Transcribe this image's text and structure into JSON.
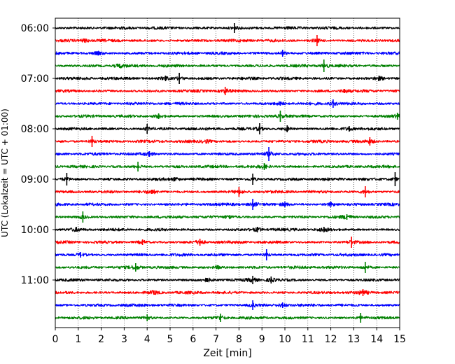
{
  "chart_data": {
    "type": "line",
    "xlabel": "Zeit  [min]",
    "ylabel": "UTC (Lokalzeit = UTC + 01:00)",
    "xlim": [
      0,
      15
    ],
    "x_ticks": [
      0,
      1,
      2,
      3,
      4,
      5,
      6,
      7,
      8,
      9,
      10,
      11,
      12,
      13,
      14,
      15
    ],
    "x_tick_labels": [
      "0",
      "1",
      "2",
      "3",
      "4",
      "5",
      "6",
      "7",
      "8",
      "9",
      "10",
      "11",
      "12",
      "13",
      "14",
      "15"
    ],
    "y_ticks": [
      {
        "time": "06:00",
        "label": "06:00"
      },
      {
        "time": "07:00",
        "label": "07:00"
      },
      {
        "time": "08:00",
        "label": "08:00"
      },
      {
        "time": "09:00",
        "label": "09:00"
      },
      {
        "time": "10:00",
        "label": "10:00"
      },
      {
        "time": "11:00",
        "label": "11:00"
      }
    ],
    "vertical_grid": "dotted, every 1 min",
    "trace_interval_min": 15,
    "colors_cycle": [
      "#000000",
      "#ff0000",
      "#0000ff",
      "#008000"
    ],
    "traces": [
      {
        "start": "06:00",
        "color": "#000000",
        "spikes": [
          [
            7.8,
            7
          ]
        ]
      },
      {
        "start": "06:15",
        "color": "#ff0000",
        "spikes": [
          [
            11.4,
            8
          ],
          [
            1.3,
            3
          ]
        ]
      },
      {
        "start": "06:30",
        "color": "#0000ff",
        "spikes": [
          [
            9.9,
            5
          ],
          [
            1.9,
            3
          ]
        ]
      },
      {
        "start": "06:45",
        "color": "#008000",
        "spikes": [
          [
            11.7,
            9
          ],
          [
            2.8,
            3
          ]
        ]
      },
      {
        "start": "07:00",
        "color": "#000000",
        "spikes": [
          [
            5.4,
            8
          ],
          [
            4.8,
            4
          ],
          [
            14.1,
            4
          ]
        ]
      },
      {
        "start": "07:15",
        "color": "#ff0000",
        "spikes": [
          [
            7.4,
            6
          ],
          [
            12.6,
            3
          ]
        ]
      },
      {
        "start": "07:30",
        "color": "#0000ff",
        "spikes": [
          [
            12.1,
            6
          ],
          [
            9.8,
            3
          ]
        ]
      },
      {
        "start": "07:45",
        "color": "#008000",
        "spikes": [
          [
            9.8,
            8
          ],
          [
            14.9,
            5
          ],
          [
            4.5,
            4
          ]
        ]
      },
      {
        "start": "08:00",
        "color": "#000000",
        "spikes": [
          [
            4.0,
            7
          ],
          [
            8.9,
            8
          ],
          [
            10.1,
            5
          ],
          [
            12.8,
            4
          ]
        ]
      },
      {
        "start": "08:15",
        "color": "#ff0000",
        "spikes": [
          [
            1.6,
            8
          ],
          [
            13.7,
            6
          ],
          [
            6.6,
            3
          ]
        ]
      },
      {
        "start": "08:30",
        "color": "#0000ff",
        "spikes": [
          [
            9.3,
            10
          ],
          [
            4.1,
            4
          ]
        ]
      },
      {
        "start": "08:45",
        "color": "#008000",
        "spikes": [
          [
            3.6,
            7
          ],
          [
            9.1,
            5
          ]
        ]
      },
      {
        "start": "09:00",
        "color": "#000000",
        "spikes": [
          [
            0.5,
            9
          ],
          [
            8.6,
            8
          ],
          [
            14.8,
            10
          ],
          [
            5.2,
            3
          ]
        ]
      },
      {
        "start": "09:15",
        "color": "#ff0000",
        "spikes": [
          [
            8.0,
            7
          ],
          [
            13.5,
            8
          ],
          [
            4.2,
            3
          ]
        ]
      },
      {
        "start": "09:30",
        "color": "#0000ff",
        "spikes": [
          [
            8.6,
            8
          ],
          [
            10.0,
            4
          ],
          [
            12.0,
            4
          ]
        ]
      },
      {
        "start": "09:45",
        "color": "#008000",
        "spikes": [
          [
            1.2,
            8
          ],
          [
            12.7,
            4
          ],
          [
            7.6,
            3
          ]
        ]
      },
      {
        "start": "10:00",
        "color": "#000000",
        "spikes": [
          [
            8.8,
            4
          ],
          [
            11.7,
            4
          ],
          [
            0.9,
            3
          ]
        ]
      },
      {
        "start": "10:15",
        "color": "#ff0000",
        "spikes": [
          [
            12.9,
            8
          ],
          [
            3.8,
            4
          ],
          [
            6.3,
            5
          ]
        ]
      },
      {
        "start": "10:30",
        "color": "#0000ff",
        "spikes": [
          [
            9.2,
            8
          ],
          [
            1.1,
            4
          ]
        ]
      },
      {
        "start": "10:45",
        "color": "#008000",
        "spikes": [
          [
            13.5,
            8
          ],
          [
            3.5,
            6
          ],
          [
            7.1,
            3
          ]
        ]
      },
      {
        "start": "11:00",
        "color": "#000000",
        "spikes": [
          [
            8.6,
            6
          ],
          [
            9.4,
            5
          ],
          [
            6.6,
            3
          ]
        ]
      },
      {
        "start": "11:15",
        "color": "#ff0000",
        "spikes": [
          [
            13.4,
            5
          ],
          [
            4.3,
            3
          ]
        ]
      },
      {
        "start": "11:30",
        "color": "#0000ff",
        "spikes": [
          [
            8.6,
            7
          ],
          [
            9.9,
            4
          ]
        ]
      },
      {
        "start": "11:45",
        "color": "#008000",
        "spikes": [
          [
            13.3,
            7
          ],
          [
            4.0,
            5
          ],
          [
            7.2,
            6
          ]
        ]
      }
    ]
  }
}
